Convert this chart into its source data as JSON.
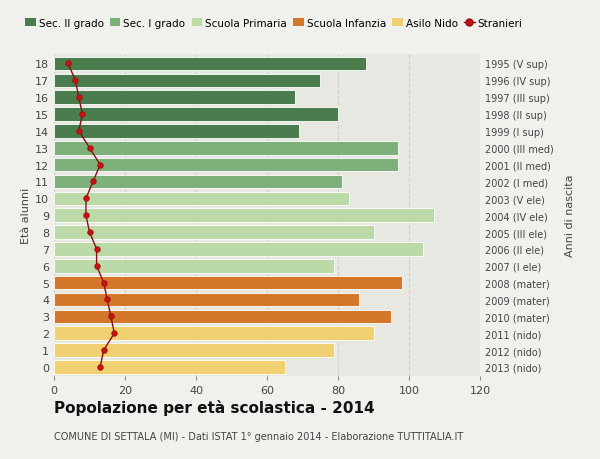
{
  "ages": [
    18,
    17,
    16,
    15,
    14,
    13,
    12,
    11,
    10,
    9,
    8,
    7,
    6,
    5,
    4,
    3,
    2,
    1,
    0
  ],
  "bar_values": [
    88,
    75,
    68,
    80,
    69,
    97,
    97,
    81,
    83,
    107,
    90,
    104,
    79,
    98,
    86,
    95,
    90,
    79,
    65
  ],
  "stranieri": [
    4,
    6,
    7,
    8,
    7,
    10,
    13,
    11,
    9,
    9,
    10,
    12,
    12,
    14,
    15,
    16,
    17,
    14,
    13
  ],
  "right_labels": [
    "1995 (V sup)",
    "1996 (IV sup)",
    "1997 (III sup)",
    "1998 (II sup)",
    "1999 (I sup)",
    "2000 (III med)",
    "2001 (II med)",
    "2002 (I med)",
    "2003 (V ele)",
    "2004 (IV ele)",
    "2005 (III ele)",
    "2006 (II ele)",
    "2007 (I ele)",
    "2008 (mater)",
    "2009 (mater)",
    "2010 (mater)",
    "2011 (nido)",
    "2012 (nido)",
    "2013 (nido)"
  ],
  "bar_colors": [
    "#4a7c4e",
    "#4a7c4e",
    "#4a7c4e",
    "#4a7c4e",
    "#4a7c4e",
    "#7db07a",
    "#7db07a",
    "#7db07a",
    "#bcd9a8",
    "#bcd9a8",
    "#bcd9a8",
    "#bcd9a8",
    "#bcd9a8",
    "#d4772a",
    "#d4772a",
    "#d4772a",
    "#f0d070",
    "#f0d070",
    "#f0d070"
  ],
  "legend_labels": [
    "Sec. II grado",
    "Sec. I grado",
    "Scuola Primaria",
    "Scuola Infanzia",
    "Asilo Nido",
    "Stranieri"
  ],
  "legend_colors": [
    "#4a7c4e",
    "#7db07a",
    "#bcd9a8",
    "#d4772a",
    "#f0d070",
    "#cc0000"
  ],
  "title": "Popolazione per età scolastica - 2014",
  "subtitle": "COMUNE DI SETTALA (MI) - Dati ISTAT 1° gennaio 2014 - Elaborazione TUTTITALIA.IT",
  "ylabel": "Età alunni",
  "right_ylabel": "Anni di nascita",
  "xlim": [
    0,
    120
  ],
  "xticks": [
    0,
    20,
    40,
    60,
    80,
    100,
    120
  ],
  "fig_bg": "#f0f0ec",
  "plot_bg": "#e8e8e2",
  "grid_color": "#d0d0c8",
  "stranieri_line_color": "#8b1010",
  "stranieri_dot_color": "#cc1010"
}
